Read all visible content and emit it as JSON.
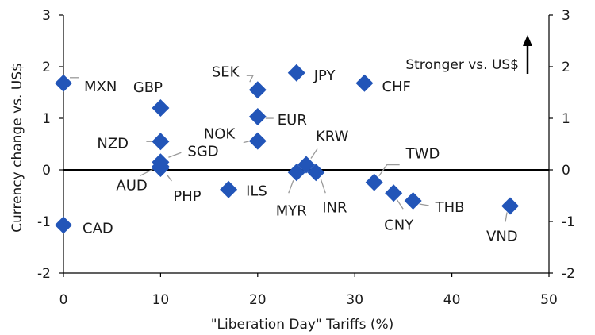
{
  "chart_data": {
    "type": "scatter",
    "xlabel": "\"Liberation Day\" Tariffs (%)",
    "ylabel": "Currency change vs. US$",
    "xlim": [
      0,
      50
    ],
    "ylim": [
      -2,
      3
    ],
    "x_ticks": [
      "0",
      "10",
      "20",
      "30",
      "40",
      "50"
    ],
    "y_ticks": [
      "-2",
      "-1",
      "0",
      "1",
      "2",
      "3"
    ],
    "y_ticks_right": [
      "-2",
      "-1",
      "0",
      "1",
      "2",
      "3"
    ],
    "annotation": "Stronger vs. US$",
    "marker_color": "#2255b8",
    "points": [
      {
        "label": "MXN",
        "x": 0,
        "y": 1.68
      },
      {
        "label": "CAD",
        "x": 0,
        "y": -1.07
      },
      {
        "label": "GBP",
        "x": 10,
        "y": 1.2
      },
      {
        "label": "NZD",
        "x": 10,
        "y": 0.55
      },
      {
        "label": "SGD",
        "x": 10,
        "y": 0.15
      },
      {
        "label": "AUD",
        "x": 10,
        "y": 0.07
      },
      {
        "label": "PHP",
        "x": 10,
        "y": 0.03
      },
      {
        "label": "ILS",
        "x": 17,
        "y": -0.38
      },
      {
        "label": "SEK",
        "x": 20,
        "y": 1.55
      },
      {
        "label": "EUR",
        "x": 20,
        "y": 1.03
      },
      {
        "label": "NOK",
        "x": 20,
        "y": 0.56
      },
      {
        "label": "JPY",
        "x": 24,
        "y": 1.88
      },
      {
        "label": "KRW",
        "x": 25,
        "y": 0.1
      },
      {
        "label": "MYR",
        "x": 24,
        "y": -0.05
      },
      {
        "label": "INR",
        "x": 26,
        "y": -0.05
      },
      {
        "label": "CHF",
        "x": 31,
        "y": 1.68
      },
      {
        "label": "TWD",
        "x": 32,
        "y": -0.24
      },
      {
        "label": "CNY",
        "x": 34,
        "y": -0.45
      },
      {
        "label": "THB",
        "x": 36,
        "y": -0.6
      },
      {
        "label": "VND",
        "x": 46,
        "y": -0.7
      }
    ]
  }
}
